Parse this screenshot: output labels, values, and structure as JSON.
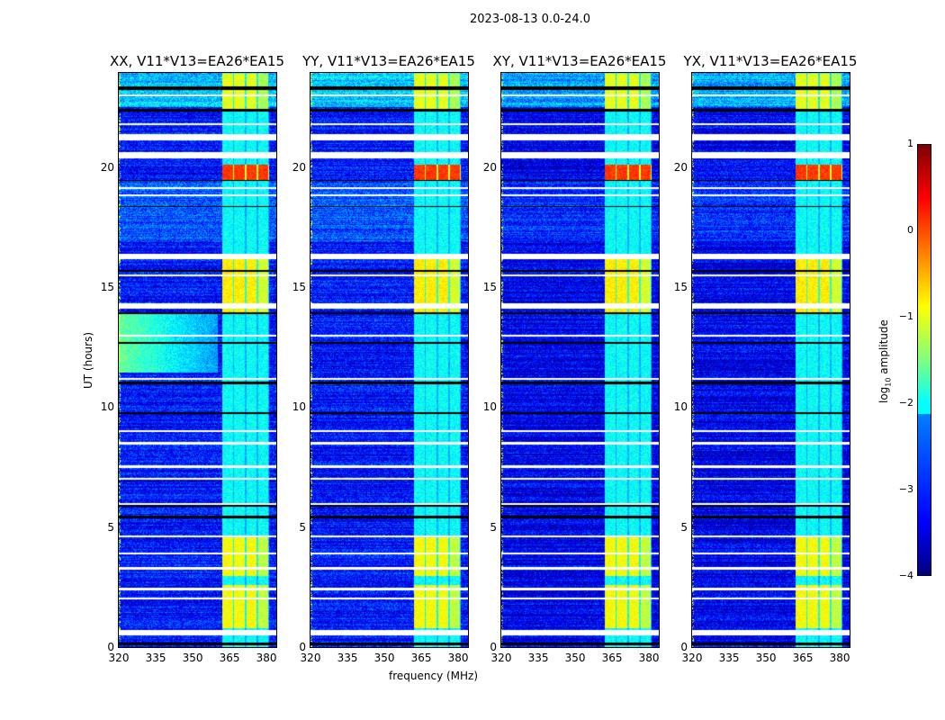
{
  "suptitle": "2023-08-13 0.0-24.0",
  "chart_data": {
    "type": "heatmap",
    "xlabel": "frequency (MHz)",
    "ylabel": "UT (hours)",
    "xlim": [
      320,
      384
    ],
    "ylim": [
      0,
      24
    ],
    "xticks": [
      "320",
      "335",
      "350",
      "365",
      "380"
    ],
    "xtick_values": [
      320,
      335,
      350,
      365,
      380
    ],
    "yticks": [
      "0",
      "5",
      "10",
      "15",
      "20"
    ],
    "ytick_values": [
      0,
      5,
      10,
      15,
      20
    ],
    "panels": [
      {
        "title": "XX, V11*V13=EA26*EA15",
        "lowfreq_bright": true
      },
      {
        "title": "YY, V11*V13=EA26*EA15",
        "lowfreq_bright": false
      },
      {
        "title": "XY, V11*V13=EA26*EA15",
        "lowfreq_bright": false
      },
      {
        "title": "YX, V11*V13=EA26*EA15",
        "lowfreq_bright": false
      }
    ],
    "rfi_band_mhz": [
      362,
      381
    ],
    "bright_intervals_hours": [
      [
        0.8,
        2.6,
        -0.9
      ],
      [
        3.0,
        4.7,
        -0.9
      ],
      [
        14.0,
        16.3,
        -0.8
      ],
      [
        19.5,
        20.2,
        0.1
      ],
      [
        22.5,
        24,
        -1.0
      ]
    ],
    "flagged_hours_white": [
      [
        0.5,
        0.75
      ],
      [
        2.0,
        2.1
      ],
      [
        2.4,
        2.52
      ],
      [
        3.25,
        3.35
      ],
      [
        3.9,
        3.98
      ],
      [
        4.6,
        4.7
      ],
      [
        5.95,
        6.05
      ],
      [
        7.0,
        7.08
      ],
      [
        7.5,
        7.6
      ],
      [
        8.5,
        8.6
      ],
      [
        9.0,
        9.1
      ],
      [
        11.2,
        11.28
      ],
      [
        13.0,
        13.08
      ],
      [
        14.15,
        14.4
      ],
      [
        15.5,
        15.6
      ],
      [
        16.25,
        16.45
      ],
      [
        18.85,
        18.95
      ],
      [
        19.15,
        19.25
      ],
      [
        20.45,
        20.7
      ],
      [
        21.2,
        21.45
      ],
      [
        21.85,
        21.92
      ],
      [
        23.05,
        23.12
      ]
    ],
    "flagged_hours_black": [
      [
        0.1,
        0.2
      ],
      [
        5.4,
        5.5
      ],
      [
        5.9,
        5.95
      ],
      [
        9.75,
        9.82
      ],
      [
        11.0,
        11.1
      ],
      [
        12.7,
        12.78
      ],
      [
        13.95,
        14.02
      ],
      [
        15.7,
        15.78
      ],
      [
        18.4,
        18.47
      ],
      [
        19.5,
        19.55
      ],
      [
        22.4,
        22.5
      ],
      [
        23.3,
        23.45
      ]
    ],
    "colorbar": {
      "label": "log10 amplitude",
      "label_main": "log",
      "label_sub": "10",
      "label_rest": " amplitude",
      "range": [
        -4,
        1
      ],
      "ticks": [
        "1",
        "0",
        "−1",
        "−2",
        "−3",
        "−4"
      ],
      "tick_values": [
        1,
        0,
        -1,
        -2,
        -3,
        -4
      ]
    }
  }
}
